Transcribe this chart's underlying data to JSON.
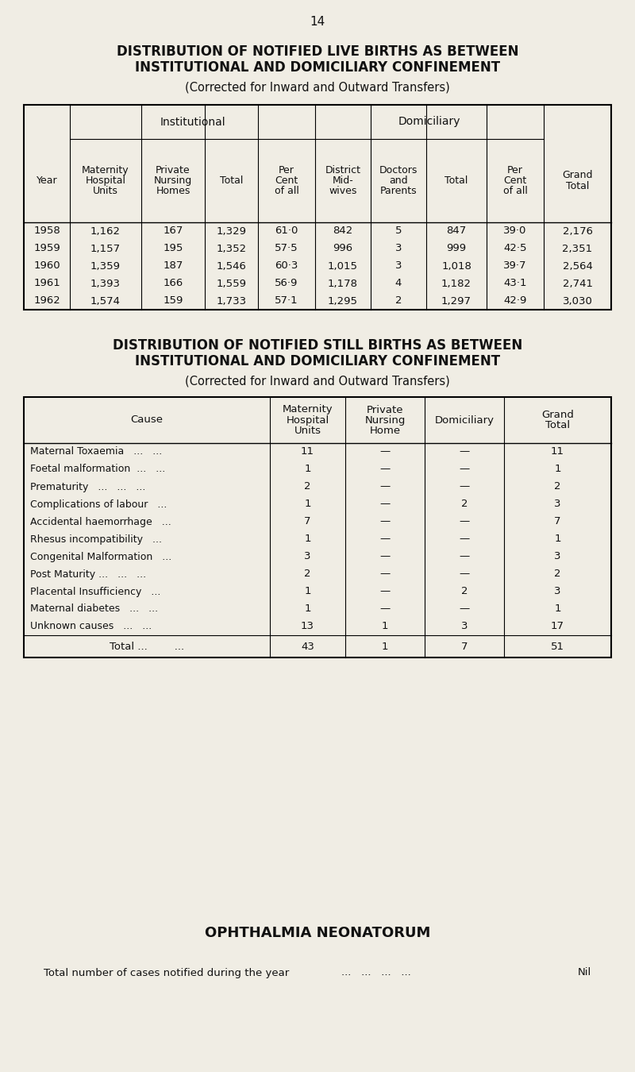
{
  "page_number": "14",
  "bg_color": "#f0ede4",
  "title1_line1": "DISTRIBUTION OF NOTIFIED LIVE BIRTHS AS BETWEEN",
  "title1_line2": "INSTITUTIONAL AND DOMICILIARY CONFINEMENT",
  "subtitle1": "(Corrected for Inward and Outward Transfers)",
  "table1_header_institutional": "Institutional",
  "table1_header_domiciliary": "Domiciliary",
  "table1_col_headers": [
    "Year",
    "Maternity\nHospital\nUnits",
    "Private\nNursing\nHomes",
    "Total",
    "Per\nCent\nof all",
    "District\nMid-\nwives",
    "Doctors\nand\nParents",
    "Total",
    "Per\nCent\nof all",
    "Grand\nTotal"
  ],
  "table1_rows": [
    [
      "1958",
      "1,162",
      "167",
      "1,329",
      "61·0",
      "842",
      "5",
      "847",
      "39·0",
      "2,176"
    ],
    [
      "1959",
      "1,157",
      "195",
      "1,352",
      "57·5",
      "996",
      "3",
      "999",
      "42·5",
      "2,351"
    ],
    [
      "1960",
      "1,359",
      "187",
      "1,546",
      "60·3",
      "1,015",
      "3",
      "1,018",
      "39·7",
      "2,564"
    ],
    [
      "1961",
      "1,393",
      "166",
      "1,559",
      "56·9",
      "1,178",
      "4",
      "1,182",
      "43·1",
      "2,741"
    ],
    [
      "1962",
      "1,574",
      "159",
      "1,733",
      "57·1",
      "1,295",
      "2",
      "1,297",
      "42·9",
      "3,030"
    ]
  ],
  "title2_line1": "DISTRIBUTION OF NOTIFIED STILL BIRTHS AS BETWEEN",
  "title2_line2": "INSTITUTIONAL AND DOMICILIARY CONFINEMENT",
  "subtitle2": "(Corrected for Inward and Outward Transfers)",
  "table2_col_headers": [
    "Cause",
    "Maternity\nHospital\nUnits",
    "Private\nNursing\nHome",
    "Domiciliary",
    "Grand\nTotal"
  ],
  "table2_rows": [
    [
      "Maternal Toxaemia   ...   ...",
      "11",
      "—",
      "—",
      "11"
    ],
    [
      "Foetal malformation  ...   ...",
      "1",
      "—",
      "—",
      "1"
    ],
    [
      "Prematurity   ...   ...   ...",
      "2",
      "—",
      "—",
      "2"
    ],
    [
      "Complications of labour   ...",
      "1",
      "—",
      "2",
      "3"
    ],
    [
      "Accidental haemorrhage   ...",
      "7",
      "—",
      "—",
      "7"
    ],
    [
      "Rhesus incompatibility   ...",
      "1",
      "—",
      "—",
      "1"
    ],
    [
      "Congenital Malformation   ...",
      "3",
      "—",
      "—",
      "3"
    ],
    [
      "Post Maturity ...   ...   ...",
      "2",
      "—",
      "—",
      "2"
    ],
    [
      "Placental Insufficiency   ...",
      "1",
      "—",
      "2",
      "3"
    ],
    [
      "Maternal diabetes   ...   ...",
      "1",
      "—",
      "—",
      "1"
    ],
    [
      "Unknown causes   ...   ...",
      "13",
      "1",
      "3",
      "17"
    ]
  ],
  "table2_total_row": [
    "Total ...        ...",
    "43",
    "1",
    "7",
    "51"
  ],
  "section3_title": "OPHTHALMIA NEONATORUM",
  "section3_text": "Total number of cases notified during the year",
  "section3_dots": "...   ...   ...   ...",
  "section3_value": "Nil"
}
